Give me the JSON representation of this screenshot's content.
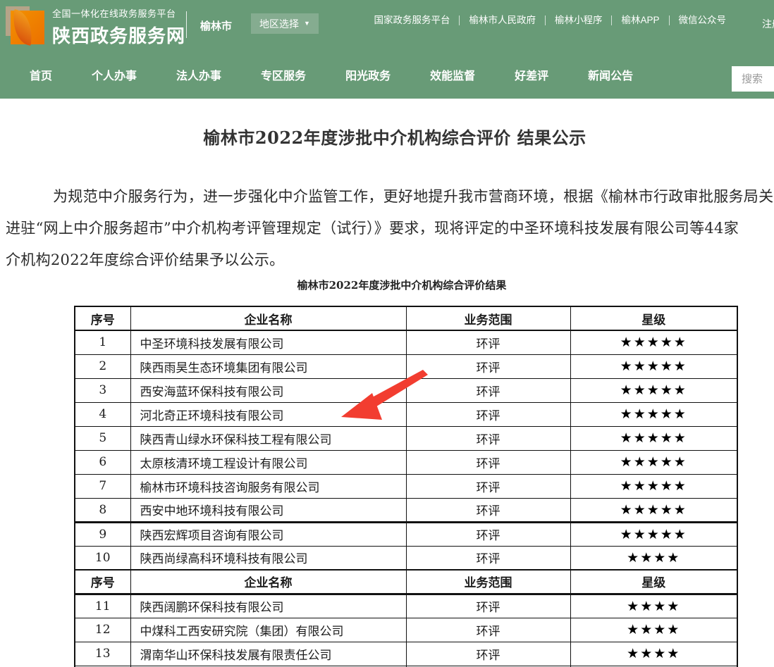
{
  "header": {
    "platform_line1": "全国一体化在线政务服务平台",
    "platform_line2": "陕西政务服务网",
    "city": "榆林市",
    "region_selector": "地区选择",
    "links": [
      "国家政务服务平台",
      "榆林市人民政府",
      "榆林小程序",
      "榆林APP",
      "微信公众号"
    ],
    "register": "注册"
  },
  "nav": {
    "items": [
      "首页",
      "个人办事",
      "法人办事",
      "专区服务",
      "阳光政务",
      "效能监督",
      "好差评",
      "新闻公告"
    ],
    "search_placeholder": "搜索"
  },
  "article": {
    "title": "榆林市2022年度涉批中介机构综合评价 结果公示",
    "paragraph_lines": [
      "为规范中介服务行为，进一步强化中介监管工作，更好地提升我市营商环境，根据《榆林市行政审批服务局关",
      "进驻“网上中介服务超市”中介机构考评管理规定（试行）》要求，现将评定的中圣环境科技发展有限公司等44家",
      "介机构2022年度综合评价结果予以公示。"
    ],
    "table_caption": "榆林市2022年度涉批中介机构综合评价结果"
  },
  "table": {
    "headers": [
      "序号",
      "企业名称",
      "业务范围",
      "星级"
    ],
    "star_char": "★",
    "rows": [
      {
        "no": "1",
        "name": "中圣环境科技发展有限公司",
        "scope": "环评",
        "stars": 5
      },
      {
        "no": "2",
        "name": "陕西雨昊生态环境集团有限公司",
        "scope": "环评",
        "stars": 5
      },
      {
        "no": "3",
        "name": "西安海蓝环保科技有限公司",
        "scope": "环评",
        "stars": 5
      },
      {
        "no": "4",
        "name": "河北奇正环境科技有限公司",
        "scope": "环评",
        "stars": 5
      },
      {
        "no": "5",
        "name": "陕西青山绿水环保科技工程有限公司",
        "scope": "环评",
        "stars": 5
      },
      {
        "no": "6",
        "name": "太原核清环境工程设计有限公司",
        "scope": "环评",
        "stars": 5
      },
      {
        "no": "7",
        "name": "榆林市环境科技咨询服务有限公司",
        "scope": "环评",
        "stars": 5
      },
      {
        "no": "8",
        "name": "西安中地环境科技有限公司",
        "scope": "环评",
        "stars": 5
      },
      {
        "no": "9",
        "name": "陕西宏辉项目咨询有限公司",
        "scope": "环评",
        "stars": 5,
        "thick_top": true
      },
      {
        "no": "10",
        "name": "陕西尚绿高科环境科技有限公司",
        "scope": "环评",
        "stars": 4
      },
      {
        "repeat_header": true
      },
      {
        "no": "11",
        "name": "陕西阔鹏环保科技有限公司",
        "scope": "环评",
        "stars": 4
      },
      {
        "no": "12",
        "name": "中煤科工西安研究院（集团）有限公司",
        "scope": "环评",
        "stars": 4
      },
      {
        "no": "13",
        "name": "渭南华山环保科技发展有限责任公司",
        "scope": "环评",
        "stars": 4
      }
    ]
  },
  "annotation": {
    "arrow_color": "#f23d30",
    "arrow_target_row": "4"
  },
  "colors": {
    "green": "#689b77",
    "green-light": "#85ac90",
    "arrow": "#f23d30"
  }
}
